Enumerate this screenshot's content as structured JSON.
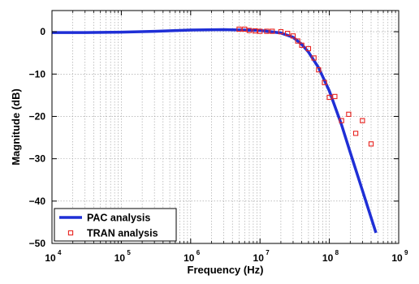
{
  "chart_data": {
    "type": "line",
    "xlabel": "Frequency (Hz)",
    "ylabel": "Magnitude (dB)",
    "xscale": "log",
    "xlim": [
      10000,
      1000000000
    ],
    "ylim": [
      -50,
      5
    ],
    "x_ticks": [
      {
        "base": "10",
        "exp": "4",
        "value": 10000
      },
      {
        "base": "10",
        "exp": "5",
        "value": 100000
      },
      {
        "base": "10",
        "exp": "6",
        "value": 1000000
      },
      {
        "base": "10",
        "exp": "7",
        "value": 10000000
      },
      {
        "base": "10",
        "exp": "8",
        "value": 100000000
      },
      {
        "base": "10",
        "exp": "9",
        "value": 1000000000
      }
    ],
    "y_ticks": [
      {
        "label": "0",
        "value": 0
      },
      {
        "label": "−10",
        "value": -10
      },
      {
        "label": "−20",
        "value": -20
      },
      {
        "label": "−30",
        "value": -30
      },
      {
        "label": "−40",
        "value": -40
      },
      {
        "label": "−50",
        "value": -50
      }
    ],
    "grid": true,
    "legend_position": "bottom-left",
    "series": [
      {
        "name": "PAC analysis",
        "style": "line",
        "color": "#1f2fd6",
        "x": [
          10000,
          30000,
          100000,
          300000,
          1000000,
          3000000,
          10000000,
          20000000,
          30000000,
          40000000,
          50000000,
          70000000,
          100000000,
          150000000,
          200000000,
          300000000,
          470000000
        ],
        "y": [
          -0.2,
          -0.2,
          -0.1,
          0.1,
          0.4,
          0.5,
          0.3,
          -0.3,
          -1.3,
          -3.0,
          -4.8,
          -8.5,
          -14.0,
          -22.0,
          -28.5,
          -37.5,
          -47.5
        ]
      },
      {
        "name": "TRAN analysis",
        "style": "marker",
        "color": "#e8231f",
        "x": [
          5000000,
          6000000,
          7000000,
          8500000,
          10000000,
          12500000,
          15000000,
          20000000,
          25000000,
          30000000,
          35000000,
          40000000,
          50000000,
          60000000,
          70000000,
          85000000,
          100000000,
          120000000,
          150000000,
          190000000,
          240000000,
          300000000,
          400000000
        ],
        "y": [
          0.6,
          0.6,
          0.3,
          0.2,
          0.1,
          0.1,
          0.1,
          0.0,
          -0.4,
          -1.0,
          -2.2,
          -3.2,
          -4.0,
          -6.2,
          -9.0,
          -12.0,
          -15.5,
          -15.3,
          -21.0,
          -19.5,
          -24.0,
          -21.0,
          -26.5
        ]
      }
    ]
  }
}
